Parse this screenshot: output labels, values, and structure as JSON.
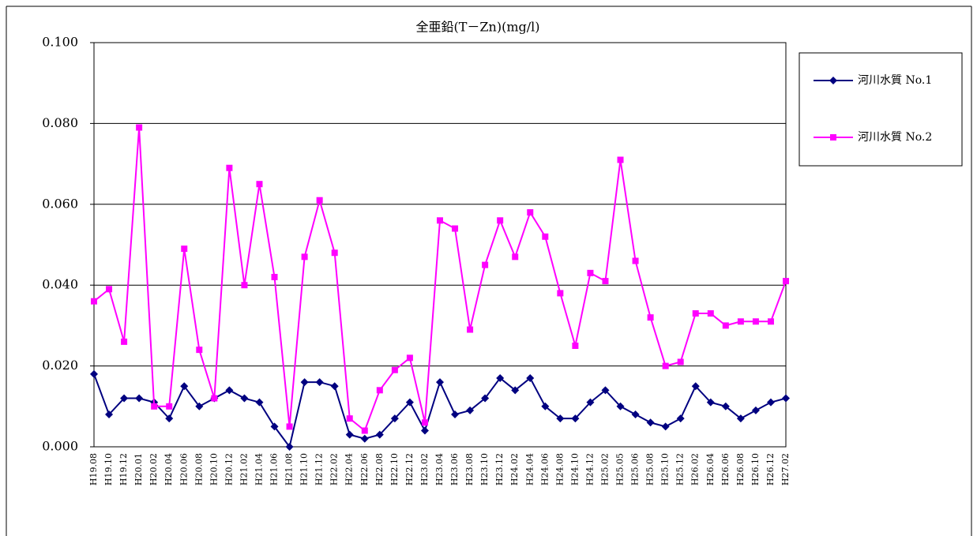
{
  "chart_data": {
    "type": "line",
    "title": "全亜鉛(T－Zn)(mg/l)",
    "categories": [
      "H19.08",
      "H19.10",
      "H19.12",
      "H20.01",
      "H20.02",
      "H20.04",
      "H20.06",
      "H20.08",
      "H20.10",
      "H20.12",
      "H21.02",
      "H21.04",
      "H21.06",
      "H21.08",
      "H21.10",
      "H21.12",
      "H22.02",
      "H22.04",
      "H22.06",
      "H22.08",
      "H22.10",
      "H22.12",
      "H23.02",
      "H23.04",
      "H23.06",
      "H23.08",
      "H23.10",
      "H23.12",
      "H24.02",
      "H24.04",
      "H24.06",
      "H24.08",
      "H24.10",
      "H24.12",
      "H25.02",
      "H25.05",
      "H25.06",
      "H25.08",
      "H25.10",
      "H25.12",
      "H26.02",
      "H26.04",
      "H26.06",
      "H26.08",
      "H26.10",
      "H26.12",
      "H27.02"
    ],
    "series": [
      {
        "name": "河川水質 No.1",
        "color": "#000080",
        "marker": "diamond",
        "values": [
          0.018,
          0.008,
          0.012,
          0.012,
          0.011,
          0.007,
          0.015,
          0.01,
          0.012,
          0.014,
          0.012,
          0.011,
          0.005,
          0.0,
          0.016,
          0.016,
          0.015,
          0.003,
          0.002,
          0.003,
          0.007,
          0.011,
          0.004,
          0.016,
          0.008,
          0.009,
          0.012,
          0.017,
          0.014,
          0.017,
          0.01,
          0.007,
          0.007,
          0.011,
          0.014,
          0.01,
          0.008,
          0.006,
          0.005,
          0.007,
          0.015,
          0.011,
          0.01,
          0.007,
          0.009,
          0.011,
          0.012
        ]
      },
      {
        "name": "河川水質 No.2",
        "color": "#ff00ff",
        "marker": "square",
        "values": [
          0.036,
          0.039,
          0.026,
          0.079,
          0.01,
          0.01,
          0.049,
          0.024,
          0.012,
          0.069,
          0.04,
          0.065,
          0.042,
          0.005,
          0.047,
          0.061,
          0.048,
          0.007,
          0.004,
          0.014,
          0.019,
          0.022,
          0.006,
          0.056,
          0.054,
          0.029,
          0.045,
          0.056,
          0.047,
          0.058,
          0.052,
          0.038,
          0.025,
          0.043,
          0.041,
          0.071,
          0.046,
          0.032,
          0.02,
          0.021,
          0.033,
          0.033,
          0.03,
          0.031,
          0.031,
          0.031,
          0.041
        ]
      }
    ],
    "ylim": [
      0,
      0.1
    ],
    "yticks": [
      {
        "value": 0,
        "label": "0.000"
      },
      {
        "value": 0.02,
        "label": "0.020"
      },
      {
        "value": 0.04,
        "label": "0.040"
      },
      {
        "value": 0.06,
        "label": "0.060"
      },
      {
        "value": 0.08,
        "label": "0.080"
      },
      {
        "value": 0.1,
        "label": "0.100"
      }
    ],
    "grid": true,
    "legend": "right"
  }
}
